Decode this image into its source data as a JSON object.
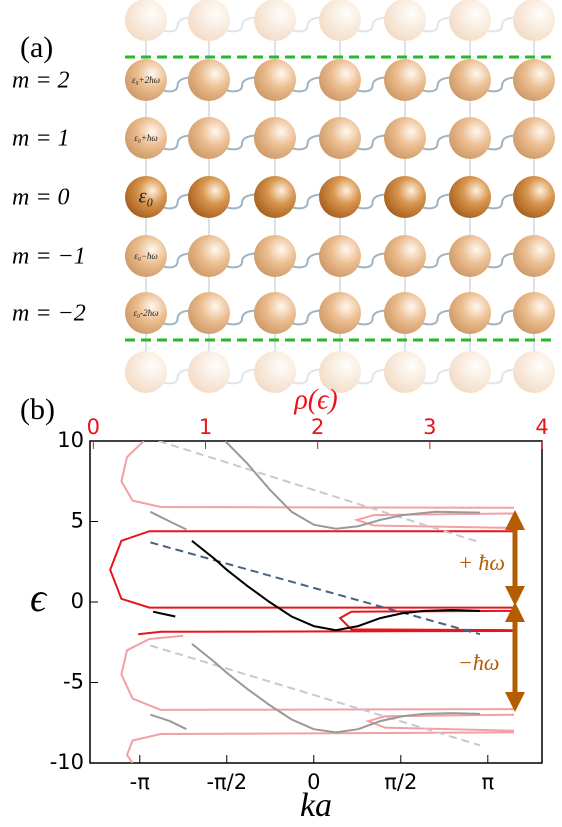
{
  "lattice": {
    "panel_label": "(a)",
    "row_labels": [
      "m = 2",
      "m = 1",
      "m = 0",
      "m = −1",
      "m = −2"
    ],
    "site_labels": [
      "ε₀+2ħω",
      "ε₀+ħω",
      "ε₀",
      "ε₀−ħω",
      "ε₀-2ħω"
    ]
  },
  "chart_data": {
    "type": "line",
    "panel_label": "(b)",
    "xlabel": "ka",
    "ylabel": "ϵ",
    "x2label": "ρ(ϵ)",
    "xlim": [
      -4.04,
      4.12
    ],
    "ylim": [
      -10,
      10
    ],
    "x2lim": [
      -0.03,
      4
    ],
    "xticks": [
      {
        "value": -3.14159,
        "label": "-π"
      },
      {
        "value": -1.5708,
        "label": "-π/2"
      },
      0,
      {
        "value": 1.5708,
        "label": "π/2"
      },
      {
        "value": 3.14159,
        "label": "π"
      }
    ],
    "yticks": [
      10,
      5,
      0,
      -5,
      -10
    ],
    "x2ticks": [
      0,
      1,
      2,
      3,
      4
    ],
    "x2color": "#e8141b",
    "annotations": [
      "+ ħω",
      "−ħω"
    ],
    "series": [
      {
        "color": "#f2a0a3",
        "axis": "x2",
        "x": [
          0.45,
          0.3,
          0.25,
          0.35,
          0.6,
          3.75,
          null,
          3.75,
          2.5,
          2.35,
          2.5,
          3.75,
          null,
          3.75,
          0.6,
          0.35,
          0.25,
          0.3,
          0.5,
          0.8,
          null,
          3.75,
          2.6,
          2.45,
          2.6,
          3.75,
          null,
          3.75,
          0.6,
          0.35,
          0.3,
          0.35
        ],
        "y": [
          10,
          9,
          7.5,
          6.3,
          5.9,
          5.85,
          null,
          5.5,
          5.4,
          5.1,
          4.75,
          4.6,
          null,
          -6.65,
          -6.7,
          -6,
          -4.5,
          -3,
          -2.3,
          -2.1,
          null,
          -7.0,
          -7.1,
          -7.4,
          -7.8,
          -8.0,
          null,
          -8.1,
          -8.2,
          -8.6,
          -9.5,
          -10
        ]
      },
      {
        "color": "#e8141b",
        "axis": "x2",
        "x": [
          3.75,
          0.5,
          0.25,
          0.15,
          0.25,
          0.5,
          3.75,
          null,
          3.75,
          2.3,
          2.2,
          2.3,
          3.75,
          null,
          3.75,
          0.6,
          0.4
        ],
        "y": [
          4.4,
          4.4,
          3.8,
          2,
          0.2,
          -0.35,
          -0.35,
          null,
          -0.55,
          -0.6,
          -1.0,
          -1.7,
          -1.75,
          null,
          -1.8,
          -1.85,
          -2.0
        ]
      },
      {
        "color": "#c8c8d0",
        "dash": true,
        "x": [
          -2.8,
          3.0,
          null,
          -2.95,
          3.0
        ],
        "y": [
          10,
          3.7,
          null,
          -2.7,
          -8.9
        ]
      },
      {
        "color": "#4a6283",
        "dash": true,
        "x": [
          -2.95,
          3.0
        ],
        "y": [
          3.7,
          -2.0
        ]
      },
      {
        "color": "#999999",
        "x": [
          -1.6,
          -1.2,
          -0.8,
          -0.4,
          0,
          0.4,
          0.8,
          1.2,
          1.6,
          2.2,
          3.0,
          null,
          -2.95,
          -2.6,
          -2.3,
          null,
          -2.2,
          -1.8,
          -1.57,
          -1.2,
          -0.8,
          -0.4,
          0,
          0.4,
          0.8,
          1.2,
          1.6,
          2.0,
          2.5,
          3.0,
          null,
          -2.95,
          -2.6,
          -2.3
        ],
        "y": [
          10,
          8.6,
          7.0,
          5.6,
          4.8,
          4.55,
          4.7,
          5.1,
          5.4,
          5.6,
          5.55,
          null,
          5.6,
          5.0,
          4.5,
          null,
          -2.6,
          -3.7,
          -4.4,
          -5.4,
          -6.4,
          -7.3,
          -7.9,
          -8.1,
          -7.9,
          -7.4,
          -7.1,
          -6.95,
          -6.9,
          -6.95,
          null,
          -7.0,
          -7.4,
          -7.9
        ]
      },
      {
        "color": "#000000",
        "x": [
          -2.2,
          -1.8,
          -1.57,
          -1.2,
          -0.8,
          -0.4,
          0,
          0.4,
          0.8,
          1.2,
          1.6,
          2.0,
          2.5,
          3.0,
          null,
          -2.9,
          -2.7,
          -2.5
        ],
        "y": [
          3.8,
          2.7,
          2.0,
          1.0,
          0.0,
          -0.9,
          -1.5,
          -1.75,
          -1.5,
          -1.0,
          -0.7,
          -0.55,
          -0.5,
          -0.55,
          null,
          -0.6,
          -0.75,
          -0.9
        ]
      }
    ]
  }
}
